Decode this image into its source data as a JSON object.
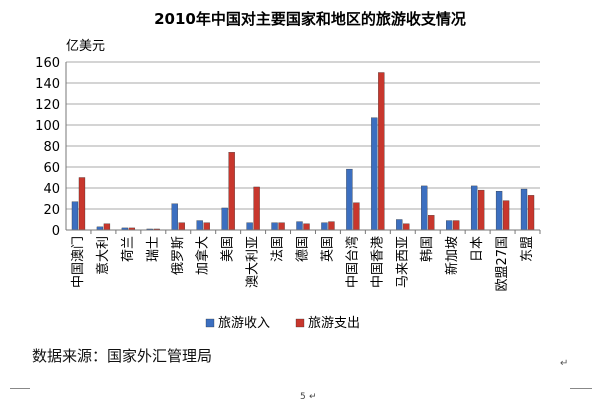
{
  "chart_data": {
    "type": "bar",
    "title": "2010年中国对主要国家和地区的旅游收支情况",
    "ylabel": "亿美元",
    "xlabel": "",
    "ylim": [
      0,
      160
    ],
    "yticks": [
      0,
      20,
      40,
      60,
      80,
      100,
      120,
      140,
      160
    ],
    "grid": true,
    "legend_position": "bottom",
    "categories": [
      "中国澳门",
      "意大利",
      "荷兰",
      "瑞士",
      "俄罗斯",
      "加拿大",
      "美国",
      "澳大利亚",
      "法国",
      "德国",
      "英国",
      "中国台湾",
      "中国香港",
      "马来西亚",
      "韩国",
      "新加坡",
      "日本",
      "欧盟27国",
      "东盟"
    ],
    "series": [
      {
        "name": "旅游收入",
        "color": "#3c6fc0",
        "values": [
          27,
          3,
          2,
          1,
          25,
          9,
          21,
          7,
          7,
          8,
          7,
          58,
          107,
          10,
          42,
          9,
          42,
          37,
          39
        ]
      },
      {
        "name": "旅游支出",
        "color": "#c8372d",
        "values": [
          50,
          6,
          2,
          1,
          7,
          7,
          74,
          41,
          7,
          6,
          8,
          26,
          150,
          6,
          14,
          9,
          38,
          28,
          33
        ]
      }
    ]
  },
  "source_note": "数据来源：国家外汇管理局",
  "return_mark": "↵",
  "page_number": "5"
}
